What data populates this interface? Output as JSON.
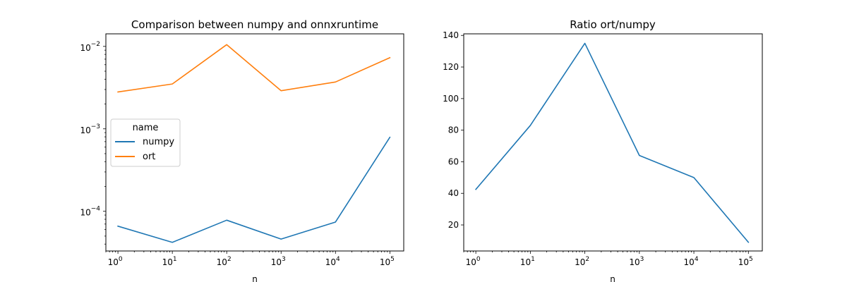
{
  "chart_data": [
    {
      "type": "line",
      "title": "Comparison between numpy and onnxruntime",
      "xlabel": "n",
      "ylabel": "",
      "xscale": "log",
      "yscale": "log",
      "x": [
        1,
        10,
        100,
        1000,
        10000,
        100000
      ],
      "xlim": [
        0.6,
        180000
      ],
      "ylim": [
        3.3e-05,
        0.0142
      ],
      "x_ticks": [
        {
          "value": 1,
          "base": "10",
          "exp": "0"
        },
        {
          "value": 10,
          "base": "10",
          "exp": "1"
        },
        {
          "value": 100,
          "base": "10",
          "exp": "2"
        },
        {
          "value": 1000,
          "base": "10",
          "exp": "3"
        },
        {
          "value": 10000,
          "base": "10",
          "exp": "4"
        },
        {
          "value": 100000,
          "base": "10",
          "exp": "5"
        }
      ],
      "y_ticks": [
        {
          "value": 0.0001,
          "base": "10",
          "exp": "−4"
        },
        {
          "value": 0.001,
          "base": "10",
          "exp": "−3"
        },
        {
          "value": 0.01,
          "base": "10",
          "exp": "−2"
        }
      ],
      "series": [
        {
          "name": "numpy",
          "color": "#1f77b4",
          "values": [
            6.6e-05,
            4.2e-05,
            7.8e-05,
            4.6e-05,
            7.4e-05,
            0.00079
          ]
        },
        {
          "name": "ort",
          "color": "#ff7f0e",
          "values": [
            0.0028,
            0.0035,
            0.0105,
            0.0029,
            0.0037,
            0.0073
          ]
        }
      ],
      "legend": {
        "title": "name",
        "placement": "center-left"
      },
      "grid": false
    },
    {
      "type": "line",
      "title": "Ratio ort/numpy",
      "xlabel": "n",
      "ylabel": "",
      "xscale": "log",
      "yscale": "linear",
      "x": [
        1,
        10,
        100,
        1000,
        10000,
        100000
      ],
      "xlim": [
        0.6,
        180000
      ],
      "ylim": [
        3.5,
        141
      ],
      "x_ticks": [
        {
          "value": 1,
          "base": "10",
          "exp": "0"
        },
        {
          "value": 10,
          "base": "10",
          "exp": "1"
        },
        {
          "value": 100,
          "base": "10",
          "exp": "2"
        },
        {
          "value": 1000,
          "base": "10",
          "exp": "3"
        },
        {
          "value": 10000,
          "base": "10",
          "exp": "4"
        },
        {
          "value": 100000,
          "base": "10",
          "exp": "5"
        }
      ],
      "y_ticks": [
        {
          "value": 20,
          "label": "20"
        },
        {
          "value": 40,
          "label": "40"
        },
        {
          "value": 60,
          "label": "60"
        },
        {
          "value": 80,
          "label": "80"
        },
        {
          "value": 100,
          "label": "100"
        },
        {
          "value": 120,
          "label": "120"
        },
        {
          "value": 140,
          "label": "140"
        }
      ],
      "series": [
        {
          "color": "#1f77b4",
          "values": [
            42.5,
            83,
            135,
            64,
            50,
            9
          ]
        }
      ],
      "grid": false
    }
  ]
}
